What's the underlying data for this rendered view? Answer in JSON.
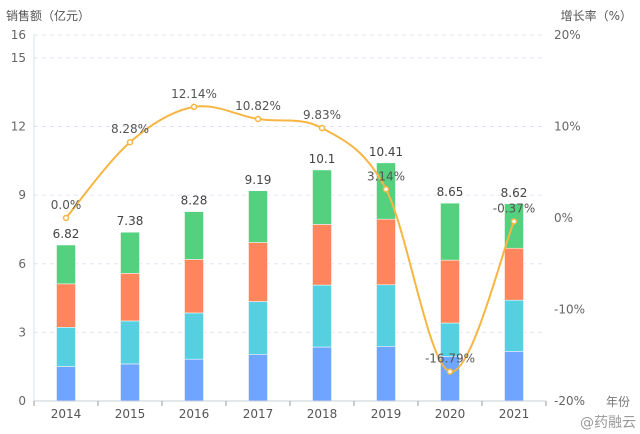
{
  "chart_data": {
    "type": "bar",
    "stacked": true,
    "categories": [
      "2014",
      "2015",
      "2016",
      "2017",
      "2018",
      "2019",
      "2020",
      "2021"
    ],
    "xlabel": "年份",
    "ylabel": "销售额（亿元）",
    "y2label": "增长率（%）",
    "ylim": [
      0,
      16
    ],
    "yticks": [
      0,
      3,
      6,
      9,
      12,
      15,
      16
    ],
    "y2lim": [
      -20,
      20
    ],
    "y2ticks": [
      "-20%",
      "-10%",
      "0%",
      "10%",
      "20%"
    ],
    "y2tick_values": [
      -20,
      -10,
      0,
      10,
      20
    ],
    "grid": true,
    "series": [
      {
        "color": "#6ea6ff",
        "values": [
          1.51,
          1.62,
          1.83,
          2.04,
          2.36,
          2.39,
          1.95,
          2.17
        ]
      },
      {
        "color": "#56d0e0",
        "values": [
          1.71,
          1.88,
          2.02,
          2.31,
          2.71,
          2.69,
          1.46,
          2.24
        ]
      },
      {
        "color": "#ff855c",
        "values": [
          1.9,
          2.08,
          2.34,
          2.58,
          2.65,
          2.87,
          2.75,
          2.27
        ]
      },
      {
        "color": "#55d07e",
        "values": [
          1.7,
          1.8,
          2.09,
          2.26,
          2.38,
          2.46,
          2.49,
          1.94
        ]
      }
    ],
    "totals": [
      "6.82",
      "7.38",
      "8.28",
      "9.19",
      "10.1",
      "10.41",
      "8.65",
      "8.62"
    ],
    "growth": {
      "color": "#f7b643",
      "type": "line",
      "smooth": true,
      "axis": "right",
      "values": [
        0.0,
        8.28,
        12.14,
        10.82,
        9.83,
        3.14,
        -16.79,
        -0.37
      ],
      "labels": [
        "0.0%",
        "8.28%",
        "12.14%",
        "10.82%",
        "9.83%",
        "3.14%",
        "-16.79%",
        "-0.37%"
      ]
    }
  },
  "watermark": "@药融云"
}
